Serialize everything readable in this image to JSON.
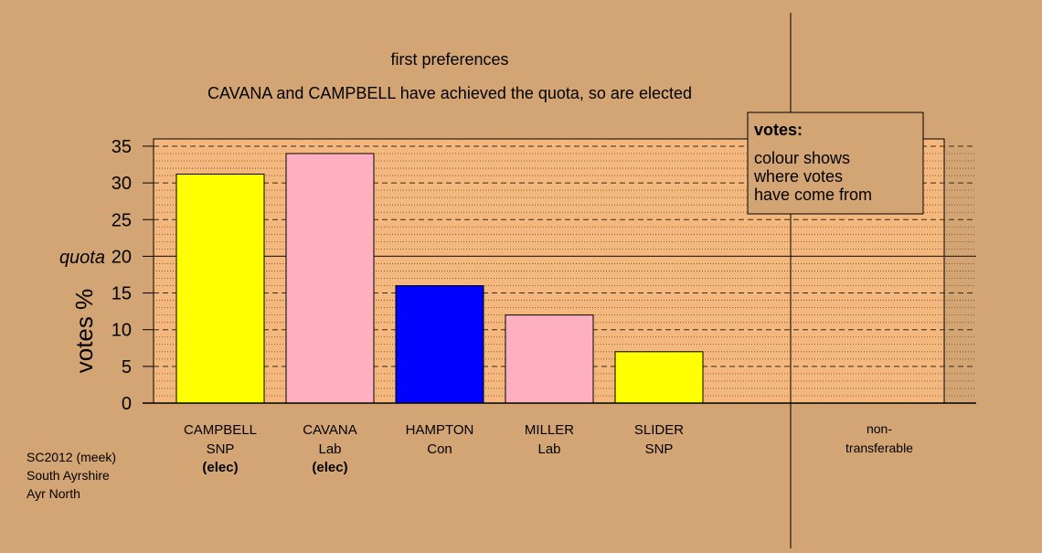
{
  "colors": {
    "background": "#d4a574",
    "plot_area": "#f4b77d",
    "legend_box": "#d4a574",
    "snp": "#ffff00",
    "lab": "#ffb0c0",
    "con": "#0000ff"
  },
  "title": "first preferences",
  "subtitle": "CAVANA and CAMPBELL have achieved the quota, so are elected",
  "ylabel": "votes %",
  "quota_label": "quota",
  "legend": {
    "title": "votes:",
    "lines": [
      "colour shows",
      "where votes",
      "have come from"
    ]
  },
  "footer": [
    "SC2012 (meek)",
    "South Ayrshire",
    "Ayr North"
  ],
  "chart_data": {
    "type": "bar",
    "title": "first preferences",
    "subtitle": "CAVANA and CAMPBELL have achieved the quota, so are elected",
    "ylabel": "votes %",
    "ylim": [
      0,
      35
    ],
    "yticks": [
      "0",
      "5",
      "10",
      "15",
      "20",
      "25",
      "30",
      "35"
    ],
    "quota": 20,
    "bars": [
      {
        "name": "CAMPBELL",
        "party": "SNP",
        "note": "(elec)",
        "value": 31.2,
        "color": "#ffff00"
      },
      {
        "name": "CAVANA",
        "party": "Lab",
        "note": "(elec)",
        "value": 34.0,
        "color": "#ffb0c0"
      },
      {
        "name": "HAMPTON",
        "party": "Con",
        "note": "",
        "value": 16.0,
        "color": "#0000ff"
      },
      {
        "name": "MILLER",
        "party": "Lab",
        "note": "",
        "value": 12.0,
        "color": "#ffb0c0"
      },
      {
        "name": "SLIDER",
        "party": "SNP",
        "note": "",
        "value": 7.0,
        "color": "#ffff00"
      }
    ],
    "nontransferable": {
      "label_line1": "non-",
      "label_line2": "transferable",
      "value": 0
    }
  }
}
